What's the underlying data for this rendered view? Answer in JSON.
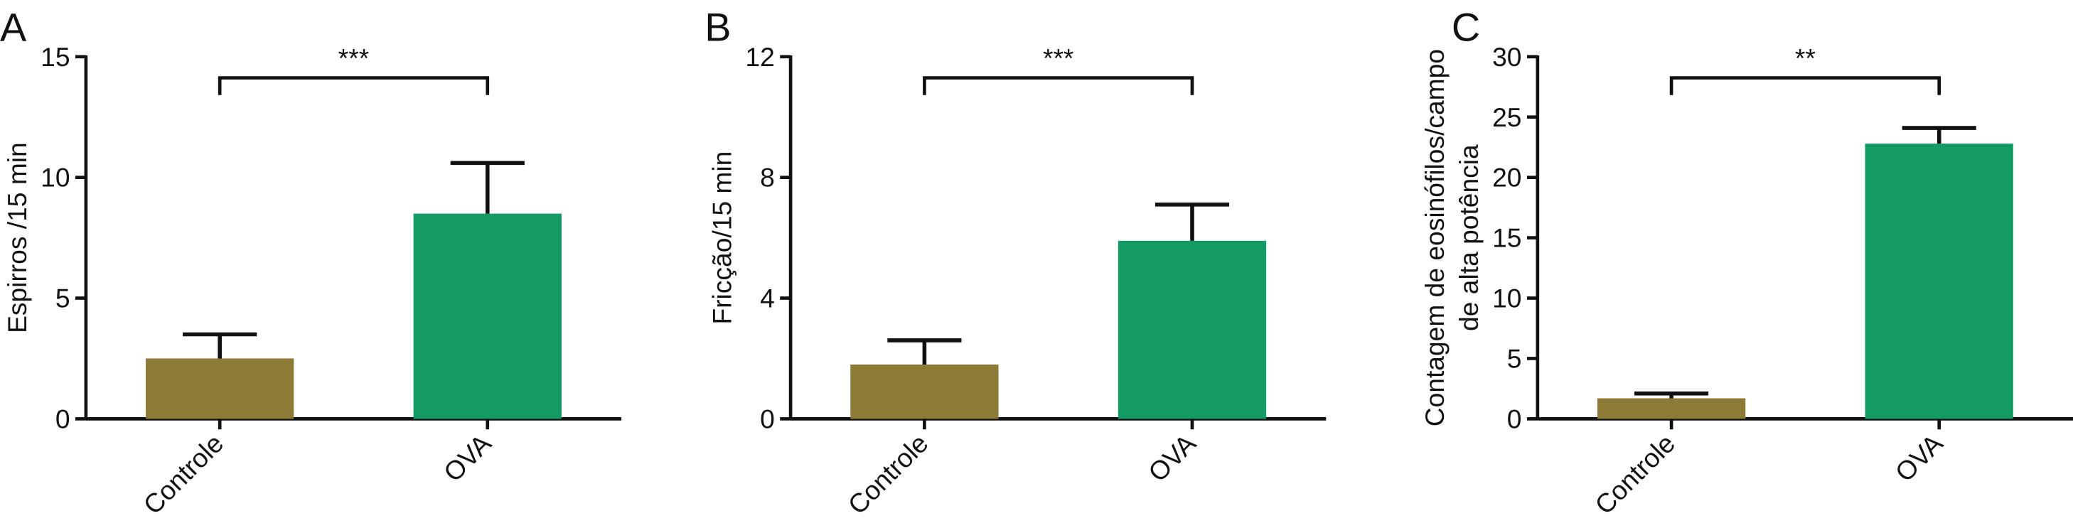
{
  "chart_data": [
    {
      "type": "bar",
      "panel_label": "A",
      "ylabel": [
        "Espirros /15 min"
      ],
      "categories": [
        "Controle",
        "OVA"
      ],
      "values": [
        2.5,
        8.5
      ],
      "errors": [
        1.0,
        2.1
      ],
      "colors": [
        "#8b7b37",
        "#149a64"
      ],
      "ylim": [
        0,
        15
      ],
      "yticks": [
        0,
        5,
        10,
        15
      ],
      "significance": "***"
    },
    {
      "type": "bar",
      "panel_label": "B",
      "ylabel": [
        "Fricção/15 min"
      ],
      "categories": [
        "Controle",
        "OVA"
      ],
      "values": [
        1.8,
        5.9
      ],
      "errors": [
        0.8,
        1.2
      ],
      "colors": [
        "#8b7b37",
        "#149a64"
      ],
      "ylim": [
        0,
        12
      ],
      "yticks": [
        0,
        4,
        8,
        12
      ],
      "significance": "***"
    },
    {
      "type": "bar",
      "panel_label": "C",
      "ylabel": [
        "Contagem de eosinófilos/campo",
        "de alta potência"
      ],
      "categories": [
        "Controle",
        "OVA"
      ],
      "values": [
        1.7,
        22.8
      ],
      "errors": [
        0.4,
        1.3
      ],
      "colors": [
        "#8b7b37",
        "#149a64"
      ],
      "ylim": [
        0,
        30
      ],
      "yticks": [
        0,
        5,
        10,
        15,
        20,
        25,
        30
      ],
      "significance": "**"
    }
  ]
}
